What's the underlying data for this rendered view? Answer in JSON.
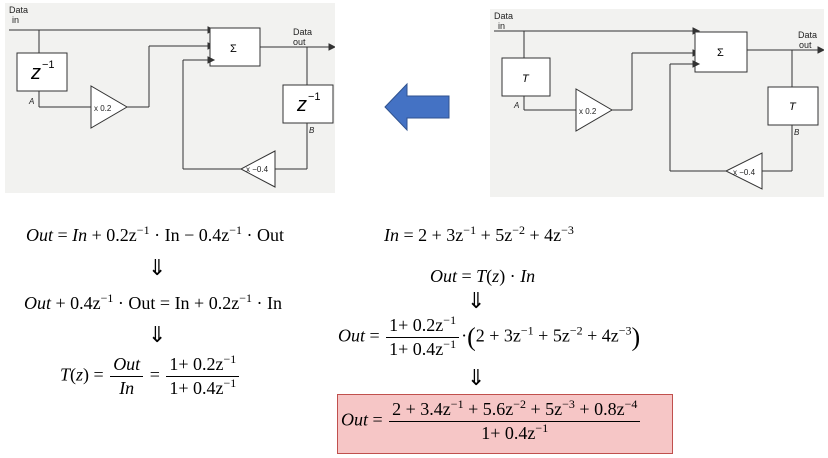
{
  "left_diagram": {
    "data_in_line1": "Data",
    "data_in_line2": "in",
    "data_out_line1": "Data",
    "data_out_line2": "out",
    "delay_left": "z",
    "delay_left_exp": "−1",
    "delay_right": "z",
    "delay_right_exp": "−1",
    "sum_symbol": "Σ",
    "gain_top": "x 0.2",
    "gain_bottom": "x −0.4",
    "node_a": "A",
    "node_b": "B"
  },
  "right_diagram": {
    "data_in_line1": "Data",
    "data_in_line2": "in",
    "data_out_line1": "Data",
    "data_out_line2": "out",
    "delay_left": "T",
    "delay_right": "T",
    "sum_symbol": "Σ",
    "gain_top": "x 0.2",
    "gain_bottom": "x −0.4",
    "node_a": "A",
    "node_b": "B"
  },
  "arrow_color": "#4472c4",
  "down_arrow": "⇓",
  "equations": {
    "left_eq1": {
      "lhs": "Out",
      "rhs1": "In",
      "rhs2": "+ 0.2z",
      "e1": "−1",
      "rhs3": " · In − 0.4z",
      "e2": "−1",
      "rhs4": " · Out"
    },
    "left_eq2": {
      "a": "Out",
      "b": " + 0.4z",
      "e1": "−1",
      "c": " · Out = In + 0.2z",
      "e2": "−1",
      "d": " · In"
    },
    "left_eq3": {
      "lhs": "T",
      "z": "z",
      "frac1_num": "Out",
      "frac1_den": "In",
      "frac2_num": "1+ 0.2z",
      "frac2_num_exp": "−1",
      "frac2_den": "1+ 0.4z",
      "frac2_den_exp": "−1"
    },
    "right_eq1": {
      "lhs": "In",
      "rhs": "2 + 3z",
      "e1": "−1",
      "b": " + 5z",
      "e2": "−2",
      "c": " + 4z",
      "e3": "−3"
    },
    "right_eq2": {
      "lhs": "Out",
      "t": "T",
      "z": "z",
      "in": "In"
    },
    "right_eq3": {
      "lhs": "Out",
      "num": "1+ 0.2z",
      "num_exp": "−1",
      "den": "1+ 0.4z",
      "den_exp": "−1",
      "p1": "2 + 3z",
      "e1": "−1",
      "p2": " + 5z",
      "e2": "−2",
      "p3": " + 4z",
      "e3": "−3"
    },
    "result": {
      "lhs": "Out",
      "num_a": "2 + 3.4z",
      "e1": "−1",
      "num_b": " + 5.6z",
      "e2": "−2",
      "num_c": " + 5z",
      "e3": "−3",
      "num_d": " + 0.8z",
      "e4": "−4",
      "den": "1+ 0.4z",
      "den_exp": "−1"
    }
  }
}
